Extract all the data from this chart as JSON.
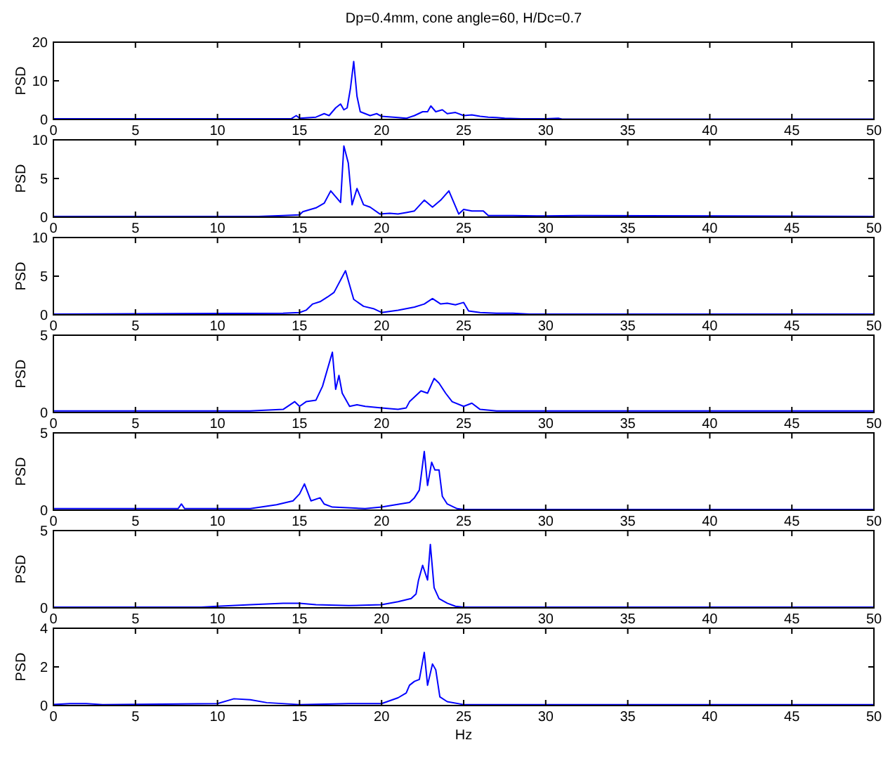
{
  "chart_data": [
    {
      "type": "line",
      "title": "Dp=0.4mm, cone angle=60, H/Dc=0.7",
      "ylabel": "PSD",
      "xlim": [
        0,
        50
      ],
      "xticks": [
        0,
        5,
        10,
        15,
        20,
        25,
        30,
        35,
        40,
        45,
        50
      ],
      "ylim": [
        0,
        20
      ],
      "yticks": [
        0,
        10,
        20
      ],
      "grid": false,
      "line_style": "solid",
      "series": [
        {
          "color": "#0000ff",
          "x": [
            0,
            14.5,
            14.8,
            15,
            16,
            16.5,
            16.8,
            17.2,
            17.5,
            17.7,
            17.9,
            18.1,
            18.3,
            18.5,
            18.7,
            19,
            19.3,
            19.7,
            20,
            21,
            21.5,
            22,
            22.5,
            22.8,
            23,
            23.3,
            23.7,
            24,
            24.5,
            25,
            25.5,
            26,
            26.5,
            27,
            27.5,
            28.5,
            30,
            30.8,
            31,
            50
          ],
          "values": [
            0.2,
            0.2,
            1,
            0.3,
            0.6,
            1.5,
            1,
            3,
            4,
            2.5,
            3,
            8,
            15,
            6,
            2,
            1.5,
            1,
            1.5,
            0.8,
            0.5,
            0.3,
            1,
            2,
            2,
            3.5,
            2,
            2.5,
            1.5,
            1.8,
            1,
            1.2,
            0.8,
            0.6,
            0.5,
            0.3,
            0.2,
            0.2,
            0.3,
            0.1,
            0.1
          ]
        }
      ]
    },
    {
      "type": "line",
      "ylabel": "PSD",
      "xlim": [
        0,
        50
      ],
      "xticks": [
        0,
        5,
        10,
        15,
        20,
        25,
        30,
        35,
        40,
        45,
        50
      ],
      "ylim": [
        0,
        10
      ],
      "yticks": [
        0,
        5,
        10
      ],
      "grid": false,
      "line_style": "solid",
      "series": [
        {
          "color": "#0000ff",
          "x": [
            0,
            12.5,
            14,
            15,
            15.2,
            16,
            16.5,
            16.9,
            17.5,
            17.7,
            17.97,
            18.2,
            18.5,
            18.9,
            19.3,
            19.9,
            20.5,
            21,
            21.5,
            22,
            22.6,
            23.1,
            23.6,
            24.1,
            24.7,
            25,
            25.5,
            26.2,
            26.5,
            28,
            30,
            32,
            50
          ],
          "values": [
            0.1,
            0.1,
            0.2,
            0.3,
            0.7,
            1.2,
            1.8,
            3.4,
            1.9,
            9.2,
            7,
            1.6,
            3.7,
            1.6,
            1.3,
            0.4,
            0.5,
            0.4,
            0.6,
            0.8,
            2.2,
            1.3,
            2.2,
            3.4,
            0.4,
            1,
            0.8,
            0.8,
            0.2,
            0.2,
            0.15,
            0.2,
            0.1
          ]
        }
      ]
    },
    {
      "type": "line",
      "ylabel": "PSD",
      "xlim": [
        0,
        50
      ],
      "xticks": [
        0,
        5,
        10,
        15,
        20,
        25,
        30,
        35,
        40,
        45,
        50
      ],
      "ylim": [
        0,
        10
      ],
      "yticks": [
        0,
        5,
        10
      ],
      "grid": false,
      "line_style": "solid",
      "series": [
        {
          "color": "#0000ff",
          "x": [
            0,
            14,
            15,
            15.4,
            15.8,
            16.25,
            16.7,
            17.1,
            17.8,
            18.3,
            18.9,
            19.5,
            20,
            21,
            22,
            22.6,
            23.1,
            23.6,
            24,
            24.5,
            25,
            25.3,
            26,
            27,
            28,
            29,
            50
          ],
          "values": [
            0.1,
            0.2,
            0.3,
            0.6,
            1.4,
            1.7,
            2.3,
            2.9,
            5.7,
            2,
            1.1,
            0.8,
            0.3,
            0.6,
            1,
            1.4,
            2.1,
            1.4,
            1.5,
            1.3,
            1.6,
            0.5,
            0.3,
            0.2,
            0.2,
            0.1,
            0.1
          ]
        }
      ]
    },
    {
      "type": "line",
      "ylabel": "PSD",
      "xlim": [
        0,
        50
      ],
      "xticks": [
        0,
        5,
        10,
        15,
        20,
        25,
        30,
        35,
        40,
        45,
        50
      ],
      "ylim": [
        0,
        5
      ],
      "yticks": [
        0,
        5
      ],
      "grid": false,
      "line_style": "solid",
      "series": [
        {
          "color": "#0000ff",
          "x": [
            0,
            8,
            12,
            14,
            14.7,
            15,
            15.4,
            16,
            16.4,
            17,
            17.2,
            17.4,
            17.6,
            18.05,
            18.5,
            19,
            20,
            21,
            21.5,
            21.7,
            22.4,
            22.8,
            23.2,
            23.5,
            23.9,
            24.3,
            25,
            25.5,
            26,
            27,
            50
          ],
          "values": [
            0.1,
            0.1,
            0.1,
            0.2,
            0.7,
            0.4,
            0.7,
            0.8,
            1.7,
            3.9,
            1.5,
            2.4,
            1.25,
            0.4,
            0.5,
            0.4,
            0.3,
            0.2,
            0.3,
            0.7,
            1.4,
            1.25,
            2.2,
            1.9,
            1.25,
            0.7,
            0.4,
            0.6,
            0.2,
            0.1,
            0.1
          ]
        }
      ]
    },
    {
      "type": "line",
      "ylabel": "PSD",
      "xlim": [
        0,
        50
      ],
      "xticks": [
        0,
        5,
        10,
        15,
        20,
        25,
        30,
        35,
        40,
        45,
        50
      ],
      "ylim": [
        0,
        5
      ],
      "yticks": [
        0,
        5
      ],
      "grid": false,
      "line_style": "solid",
      "series": [
        {
          "color": "#0000ff",
          "x": [
            0,
            7.6,
            7.8,
            8,
            10,
            12,
            13.6,
            14.6,
            15,
            15.3,
            15.7,
            16.25,
            16.5,
            17,
            19,
            20,
            21.7,
            22,
            22.3,
            22.6,
            22.8,
            23.05,
            23.25,
            23.5,
            23.7,
            24,
            24.6,
            25,
            50
          ],
          "values": [
            0.1,
            0.1,
            0.4,
            0.1,
            0.1,
            0.1,
            0.35,
            0.6,
            1.05,
            1.7,
            0.6,
            0.8,
            0.4,
            0.2,
            0.1,
            0.2,
            0.5,
            0.8,
            1.3,
            3.8,
            1.6,
            3.1,
            2.6,
            2.6,
            0.9,
            0.4,
            0.1,
            0.05,
            0.05
          ]
        }
      ]
    },
    {
      "type": "line",
      "ylabel": "PSD",
      "xlim": [
        0,
        50
      ],
      "xticks": [
        0,
        5,
        10,
        15,
        20,
        25,
        30,
        35,
        40,
        45,
        50
      ],
      "ylim": [
        0,
        5
      ],
      "yticks": [
        0,
        5
      ],
      "grid": false,
      "line_style": "solid",
      "series": [
        {
          "color": "#0000ff",
          "x": [
            0,
            9,
            10,
            12,
            14,
            15,
            16,
            18,
            20,
            21,
            21.8,
            22.1,
            22.25,
            22.5,
            22.8,
            22.97,
            23.2,
            23.5,
            24,
            24.5,
            25,
            50
          ],
          "values": [
            0.05,
            0.05,
            0.1,
            0.2,
            0.3,
            0.3,
            0.2,
            0.15,
            0.2,
            0.4,
            0.6,
            0.9,
            1.8,
            2.75,
            1.8,
            4.1,
            1.3,
            0.6,
            0.3,
            0.1,
            0.05,
            0.05
          ]
        }
      ]
    },
    {
      "type": "line",
      "ylabel": "PSD",
      "xlabel": "Hz",
      "xlim": [
        0,
        50
      ],
      "xticks": [
        0,
        5,
        10,
        15,
        20,
        25,
        30,
        35,
        40,
        45,
        50
      ],
      "ylim": [
        0,
        4
      ],
      "yticks": [
        0,
        2,
        4
      ],
      "grid": false,
      "line_style": "solid",
      "series": [
        {
          "color": "#0000ff",
          "x": [
            0,
            1,
            2,
            3,
            10,
            11,
            12,
            13,
            15,
            18,
            20,
            21,
            21.5,
            21.7,
            22,
            22.3,
            22.6,
            22.8,
            23.1,
            23.3,
            23.55,
            24,
            25,
            50
          ],
          "values": [
            0.05,
            0.1,
            0.1,
            0.05,
            0.1,
            0.35,
            0.3,
            0.15,
            0.05,
            0.1,
            0.1,
            0.4,
            0.65,
            1.05,
            1.25,
            1.35,
            2.75,
            1.05,
            2.15,
            1.85,
            0.45,
            0.2,
            0.05,
            0.05
          ]
        }
      ]
    }
  ]
}
